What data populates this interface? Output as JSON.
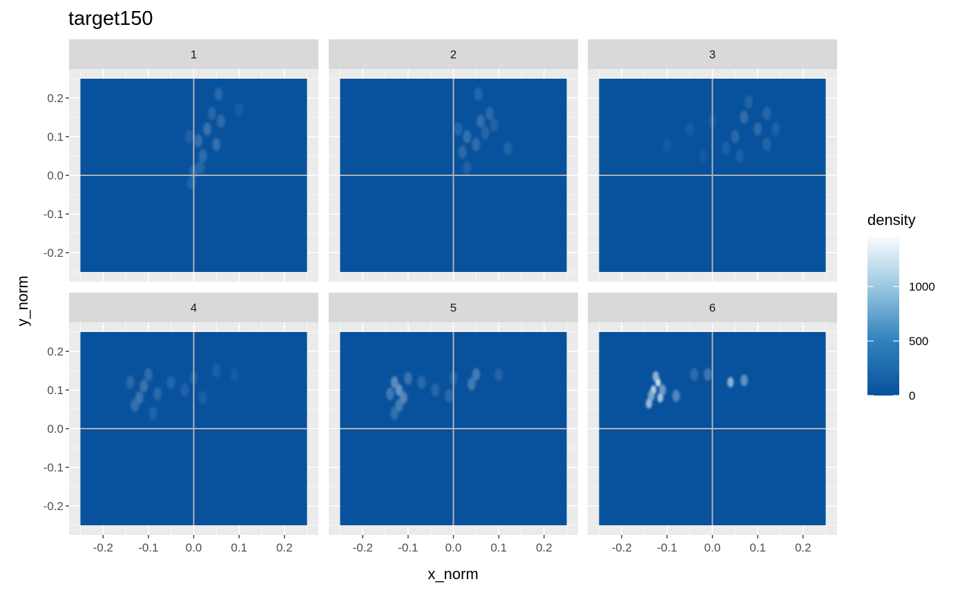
{
  "chart_data": {
    "type": "heatmap",
    "title": "target150",
    "xlabel": "x_norm",
    "ylabel": "y_norm",
    "xlim": [
      -0.25,
      0.25
    ],
    "ylim": [
      -0.25,
      0.25
    ],
    "x_ticks": [
      -0.2,
      -0.1,
      0.0,
      0.1,
      0.2
    ],
    "x_tick_labels": [
      "-0.2",
      "-0.1",
      "0.0",
      "0.1",
      "0.2"
    ],
    "y_ticks": [
      0.2,
      0.1,
      0.0,
      -0.1,
      -0.2
    ],
    "y_tick_labels": [
      "0.2",
      "0.1",
      "0.0",
      "-0.1",
      "-0.2"
    ],
    "reference_lines": {
      "x": 0,
      "y": 0
    },
    "colors": {
      "fill_low": "#08519c",
      "fill_high": "#f7fbff",
      "reference_line": "#b3b3b3",
      "panel_background": "#ebebeb",
      "strip_background": "#d9d9d9",
      "grid": "#ffffff"
    },
    "legend": {
      "title": "density",
      "position": "right",
      "min": 0,
      "max": 1450,
      "breaks": [
        0,
        500,
        1000
      ],
      "break_labels": [
        "0",
        "500",
        "1000"
      ]
    },
    "panels": [
      {
        "label": "1",
        "blobs": [
          {
            "x": 0.03,
            "y": 0.12,
            "d": 320
          },
          {
            "x": 0.05,
            "y": 0.08,
            "d": 300
          },
          {
            "x": 0.01,
            "y": 0.09,
            "d": 280
          },
          {
            "x": 0.06,
            "y": 0.14,
            "d": 240
          },
          {
            "x": 0.055,
            "y": 0.21,
            "d": 220
          },
          {
            "x": 0.02,
            "y": 0.05,
            "d": 260
          },
          {
            "x": 0.0,
            "y": 0.01,
            "d": 220
          },
          {
            "x": -0.005,
            "y": -0.02,
            "d": 180
          },
          {
            "x": 0.04,
            "y": 0.16,
            "d": 200
          },
          {
            "x": 0.015,
            "y": 0.02,
            "d": 200
          },
          {
            "x": -0.01,
            "y": 0.1,
            "d": 160
          },
          {
            "x": 0.1,
            "y": 0.17,
            "d": 100
          }
        ]
      },
      {
        "label": "2",
        "blobs": [
          {
            "x": 0.03,
            "y": 0.1,
            "d": 300
          },
          {
            "x": 0.06,
            "y": 0.14,
            "d": 280
          },
          {
            "x": 0.02,
            "y": 0.06,
            "d": 240
          },
          {
            "x": 0.05,
            "y": 0.08,
            "d": 260
          },
          {
            "x": 0.08,
            "y": 0.16,
            "d": 220
          },
          {
            "x": 0.055,
            "y": 0.21,
            "d": 200
          },
          {
            "x": 0.12,
            "y": 0.07,
            "d": 180
          },
          {
            "x": 0.03,
            "y": 0.02,
            "d": 160
          },
          {
            "x": 0.01,
            "y": 0.12,
            "d": 200
          },
          {
            "x": 0.07,
            "y": 0.11,
            "d": 200
          },
          {
            "x": 0.09,
            "y": 0.13,
            "d": 160
          }
        ]
      },
      {
        "label": "3",
        "blobs": [
          {
            "x": 0.07,
            "y": 0.15,
            "d": 260
          },
          {
            "x": 0.1,
            "y": 0.12,
            "d": 240
          },
          {
            "x": 0.05,
            "y": 0.1,
            "d": 220
          },
          {
            "x": 0.12,
            "y": 0.16,
            "d": 200
          },
          {
            "x": 0.08,
            "y": 0.19,
            "d": 180
          },
          {
            "x": 0.12,
            "y": 0.08,
            "d": 180
          },
          {
            "x": 0.03,
            "y": 0.07,
            "d": 140
          },
          {
            "x": 0.14,
            "y": 0.12,
            "d": 140
          },
          {
            "x": -0.05,
            "y": 0.12,
            "d": 90
          },
          {
            "x": -0.1,
            "y": 0.08,
            "d": 70
          },
          {
            "x": 0.0,
            "y": 0.14,
            "d": 100
          },
          {
            "x": -0.02,
            "y": 0.05,
            "d": 80
          },
          {
            "x": 0.06,
            "y": 0.05,
            "d": 130
          }
        ]
      },
      {
        "label": "4",
        "blobs": [
          {
            "x": -0.12,
            "y": 0.08,
            "d": 340
          },
          {
            "x": -0.11,
            "y": 0.11,
            "d": 320
          },
          {
            "x": -0.13,
            "y": 0.06,
            "d": 280
          },
          {
            "x": -0.1,
            "y": 0.14,
            "d": 260
          },
          {
            "x": -0.08,
            "y": 0.09,
            "d": 220
          },
          {
            "x": -0.05,
            "y": 0.12,
            "d": 180
          },
          {
            "x": -0.02,
            "y": 0.1,
            "d": 160
          },
          {
            "x": 0.0,
            "y": 0.13,
            "d": 140
          },
          {
            "x": 0.02,
            "y": 0.08,
            "d": 140
          },
          {
            "x": 0.05,
            "y": 0.15,
            "d": 120
          },
          {
            "x": -0.14,
            "y": 0.12,
            "d": 220
          },
          {
            "x": -0.09,
            "y": 0.04,
            "d": 160
          },
          {
            "x": 0.09,
            "y": 0.14,
            "d": 100
          }
        ]
      },
      {
        "label": "5",
        "blobs": [
          {
            "x": -0.12,
            "y": 0.1,
            "d": 620
          },
          {
            "x": -0.13,
            "y": 0.12,
            "d": 560
          },
          {
            "x": -0.11,
            "y": 0.08,
            "d": 520
          },
          {
            "x": -0.12,
            "y": 0.06,
            "d": 420
          },
          {
            "x": -0.14,
            "y": 0.09,
            "d": 380
          },
          {
            "x": -0.1,
            "y": 0.13,
            "d": 320
          },
          {
            "x": -0.13,
            "y": 0.04,
            "d": 300
          },
          {
            "x": -0.07,
            "y": 0.12,
            "d": 220
          },
          {
            "x": -0.04,
            "y": 0.1,
            "d": 200
          },
          {
            "x": -0.01,
            "y": 0.085,
            "d": 220
          },
          {
            "x": 0.05,
            "y": 0.14,
            "d": 420
          },
          {
            "x": 0.04,
            "y": 0.115,
            "d": 380
          },
          {
            "x": 0.0,
            "y": 0.13,
            "d": 180
          },
          {
            "x": 0.1,
            "y": 0.14,
            "d": 160
          }
        ]
      },
      {
        "label": "6",
        "blobs": [
          {
            "x": -0.12,
            "y": 0.12,
            "d": 1400
          },
          {
            "x": -0.13,
            "y": 0.1,
            "d": 1200
          },
          {
            "x": -0.115,
            "y": 0.08,
            "d": 1100
          },
          {
            "x": -0.14,
            "y": 0.065,
            "d": 1000
          },
          {
            "x": -0.125,
            "y": 0.135,
            "d": 900
          },
          {
            "x": -0.135,
            "y": 0.085,
            "d": 800
          },
          {
            "x": -0.11,
            "y": 0.1,
            "d": 700
          },
          {
            "x": -0.08,
            "y": 0.085,
            "d": 500
          },
          {
            "x": 0.04,
            "y": 0.12,
            "d": 900
          },
          {
            "x": 0.07,
            "y": 0.125,
            "d": 600
          },
          {
            "x": -0.01,
            "y": 0.14,
            "d": 350
          },
          {
            "x": -0.04,
            "y": 0.14,
            "d": 250
          }
        ]
      }
    ]
  }
}
